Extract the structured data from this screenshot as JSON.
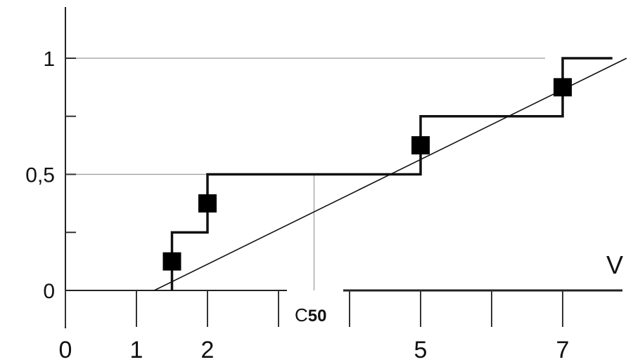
{
  "chart_data": {
    "type": "line",
    "title": "",
    "xlabel": "V",
    "ylabel": "",
    "xlim": [
      0,
      7.9
    ],
    "ylim": [
      0,
      1.2
    ],
    "x_ticks": [
      0,
      1,
      2,
      3,
      4,
      5,
      6,
      7
    ],
    "x_tick_labels": [
      {
        "x": 0,
        "text": "0"
      },
      {
        "x": 1,
        "text": "1"
      },
      {
        "x": 2,
        "text": "2"
      },
      {
        "x": 5,
        "text": "5"
      },
      {
        "x": 7,
        "text": "7"
      }
    ],
    "y_ticks": [
      0,
      0.25,
      0.5,
      0.75,
      1
    ],
    "y_tick_labels": [
      {
        "y": 0,
        "text": "0"
      },
      {
        "y": 0.5,
        "text": "0,5"
      },
      {
        "y": 1,
        "text": "1"
      }
    ],
    "reference_lines": [
      {
        "orientation": "horizontal",
        "y": 1
      },
      {
        "orientation": "horizontal",
        "y": 0.5
      },
      {
        "orientation": "vertical",
        "x": 3.5
      }
    ],
    "annotation": {
      "text_prefix": "C",
      "text_suffix": "50",
      "x": 3.5
    },
    "series": [
      {
        "kind": "step",
        "points": [
          [
            1.5,
            0
          ],
          [
            1.5,
            0.25
          ],
          [
            2,
            0.25
          ],
          [
            2,
            0.5
          ],
          [
            5,
            0.5
          ],
          [
            5,
            0.75
          ],
          [
            7,
            0.75
          ],
          [
            7,
            1
          ],
          [
            7.7,
            1
          ]
        ]
      },
      {
        "kind": "fit",
        "points": [
          [
            1.25,
            0
          ],
          [
            7.9,
            1
          ]
        ]
      },
      {
        "kind": "markers",
        "points": [
          [
            1.5,
            0.125
          ],
          [
            2,
            0.375
          ],
          [
            5,
            0.625
          ],
          [
            7,
            0.875
          ]
        ]
      }
    ]
  }
}
